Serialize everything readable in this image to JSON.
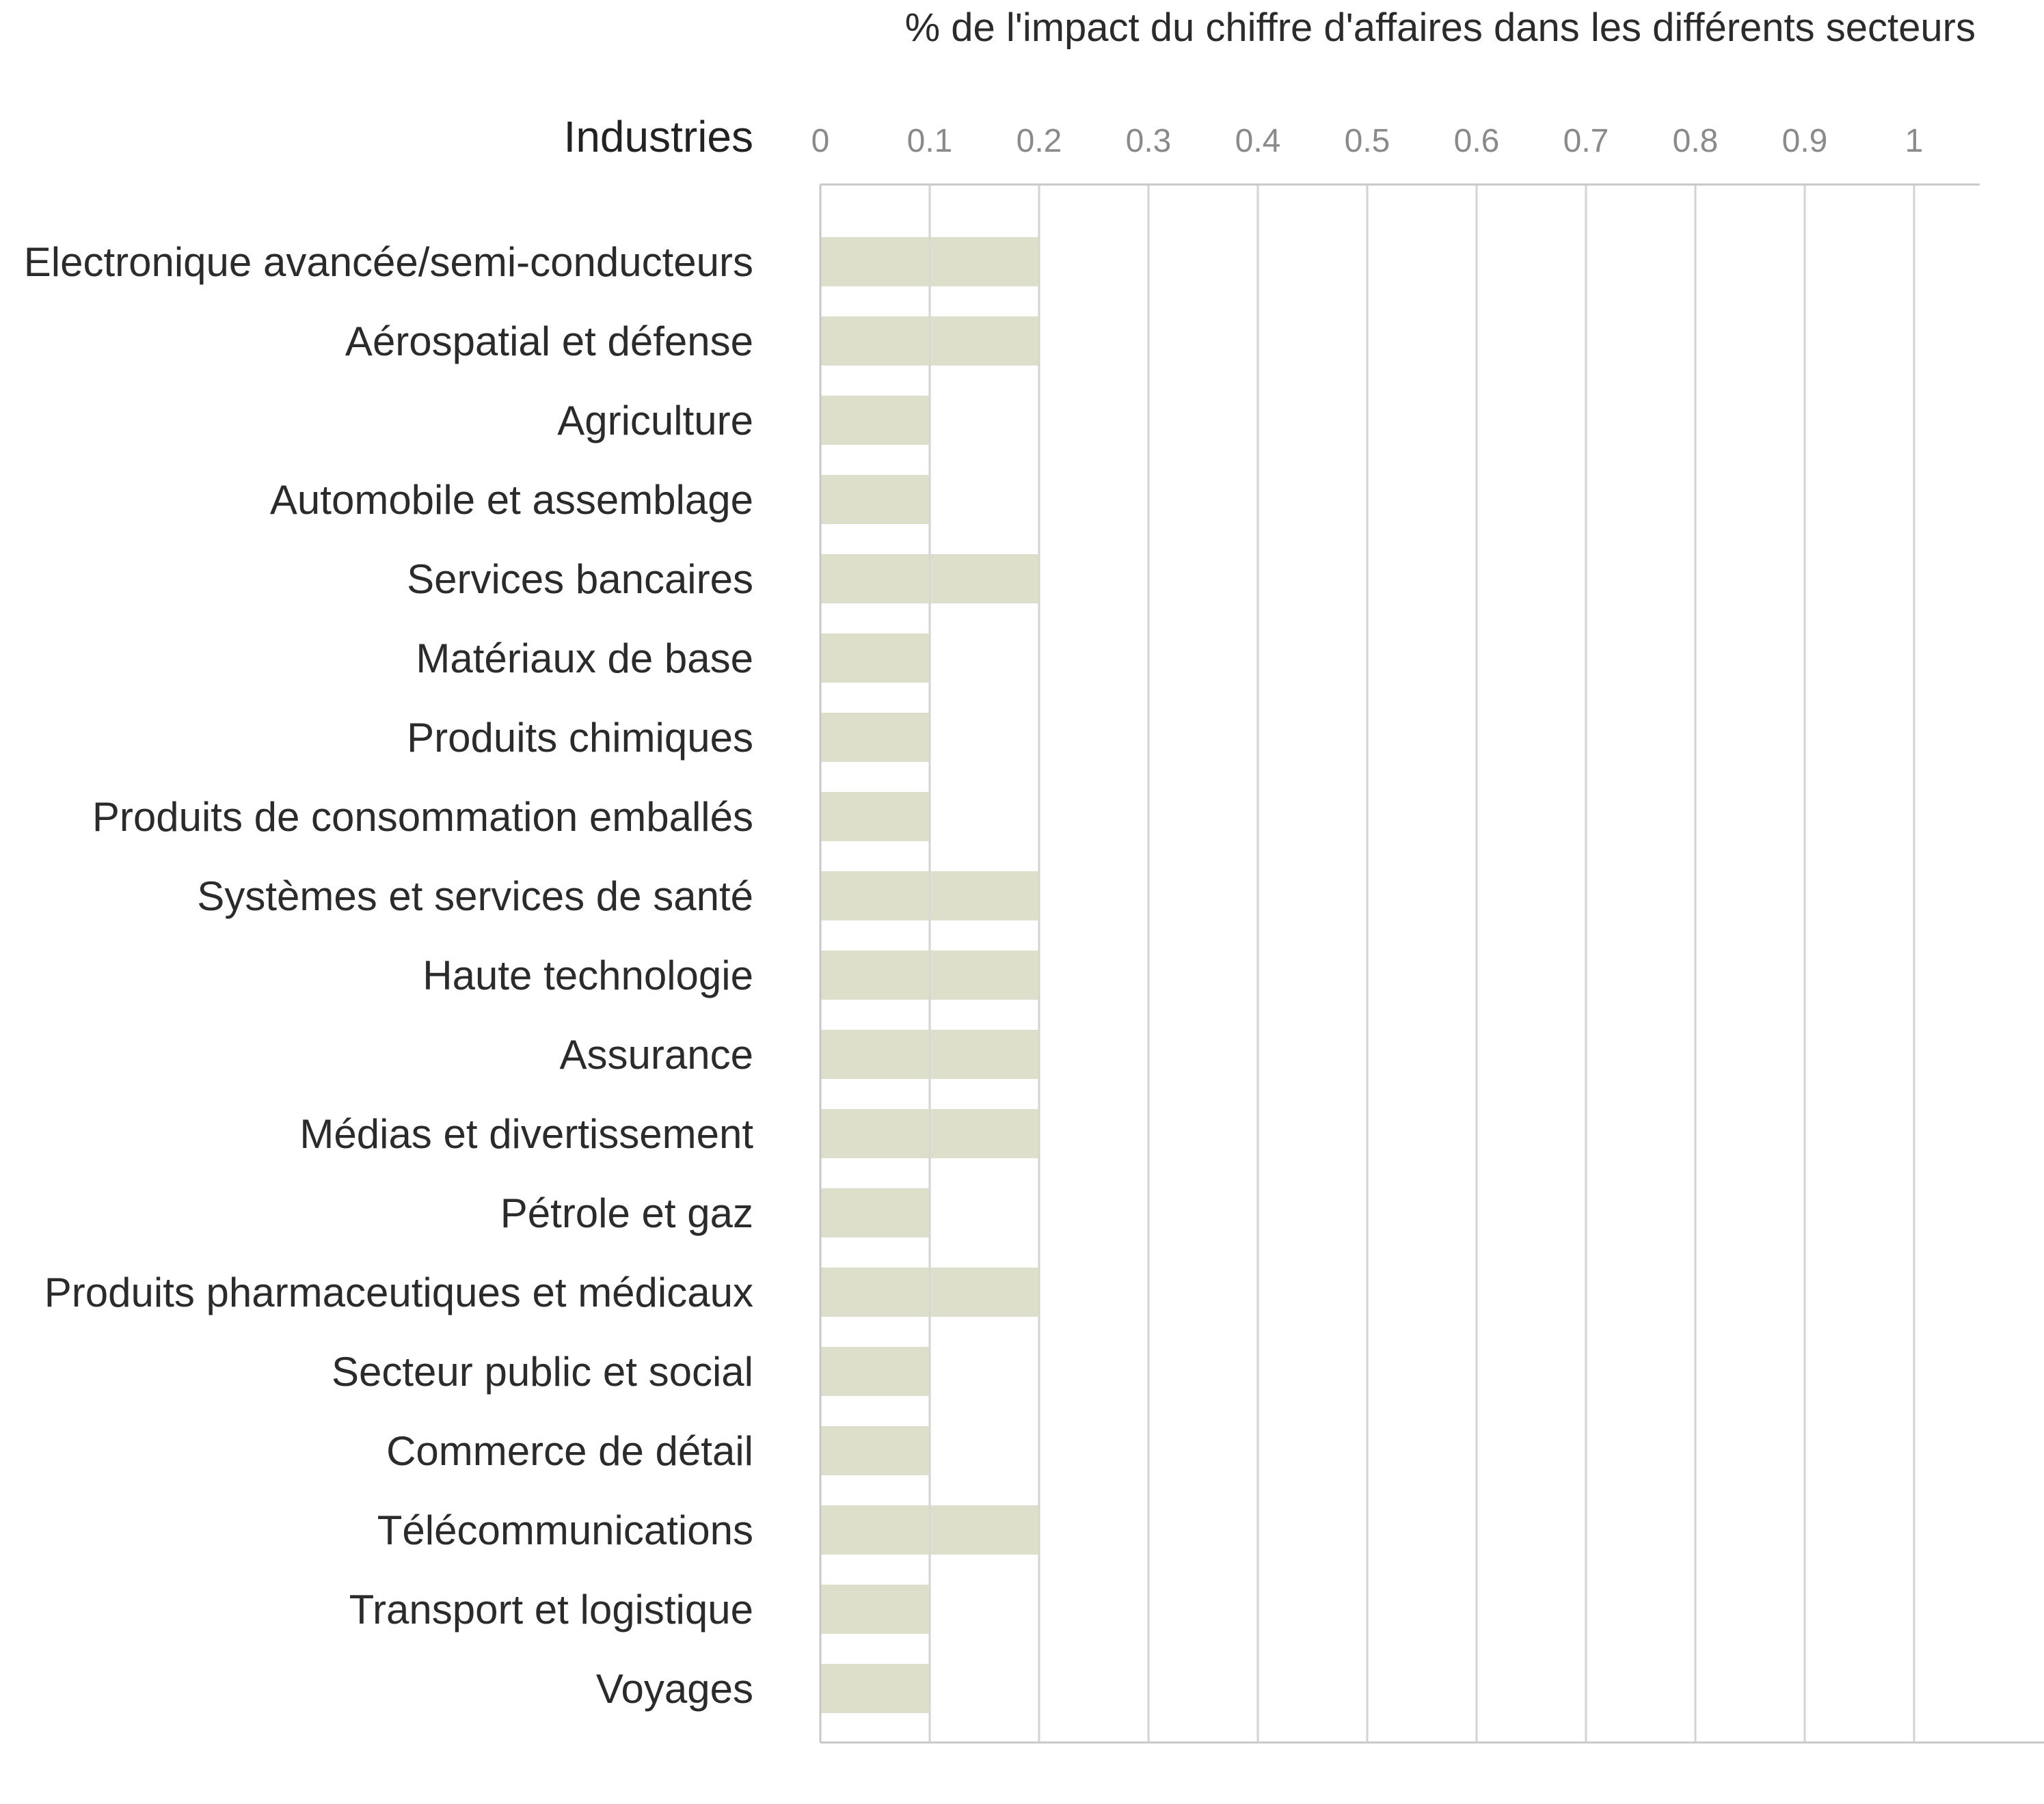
{
  "chart_data": {
    "type": "bar",
    "orientation": "horizontal",
    "title": "% de l'impact du chiffre d'affaires dans les différents secteurs",
    "ylabel": "Industries",
    "xlabel": "",
    "x_ticks": [
      "0",
      "0.1",
      "0.2",
      "0.3",
      "0.4",
      "0.5",
      "0.6",
      "0.7",
      "0.8",
      "0.9",
      "1"
    ],
    "xlim": [
      0,
      1.06
    ],
    "grid": true,
    "bar_color": "#dedfca",
    "categories": [
      "Electronique avancée/semi-conducteurs",
      "Aérospatial et défense",
      "Agriculture",
      "Automobile et assemblage",
      "Services bancaires",
      "Matériaux de base",
      "Produits chimiques",
      "Produits de consommation emballés",
      "Systèmes et services de santé",
      "Haute technologie",
      "Assurance",
      "Médias et divertissement",
      "Pétrole et gaz",
      "Produits pharmaceutiques et médicaux",
      "Secteur public et social",
      "Commerce de détail",
      "Télécommunications",
      "Transport et logistique",
      "Voyages"
    ],
    "values": [
      0.2,
      0.2,
      0.1,
      0.1,
      0.2,
      0.1,
      0.1,
      0.1,
      0.2,
      0.2,
      0.2,
      0.2,
      0.1,
      0.2,
      0.1,
      0.1,
      0.2,
      0.1,
      0.1
    ]
  }
}
